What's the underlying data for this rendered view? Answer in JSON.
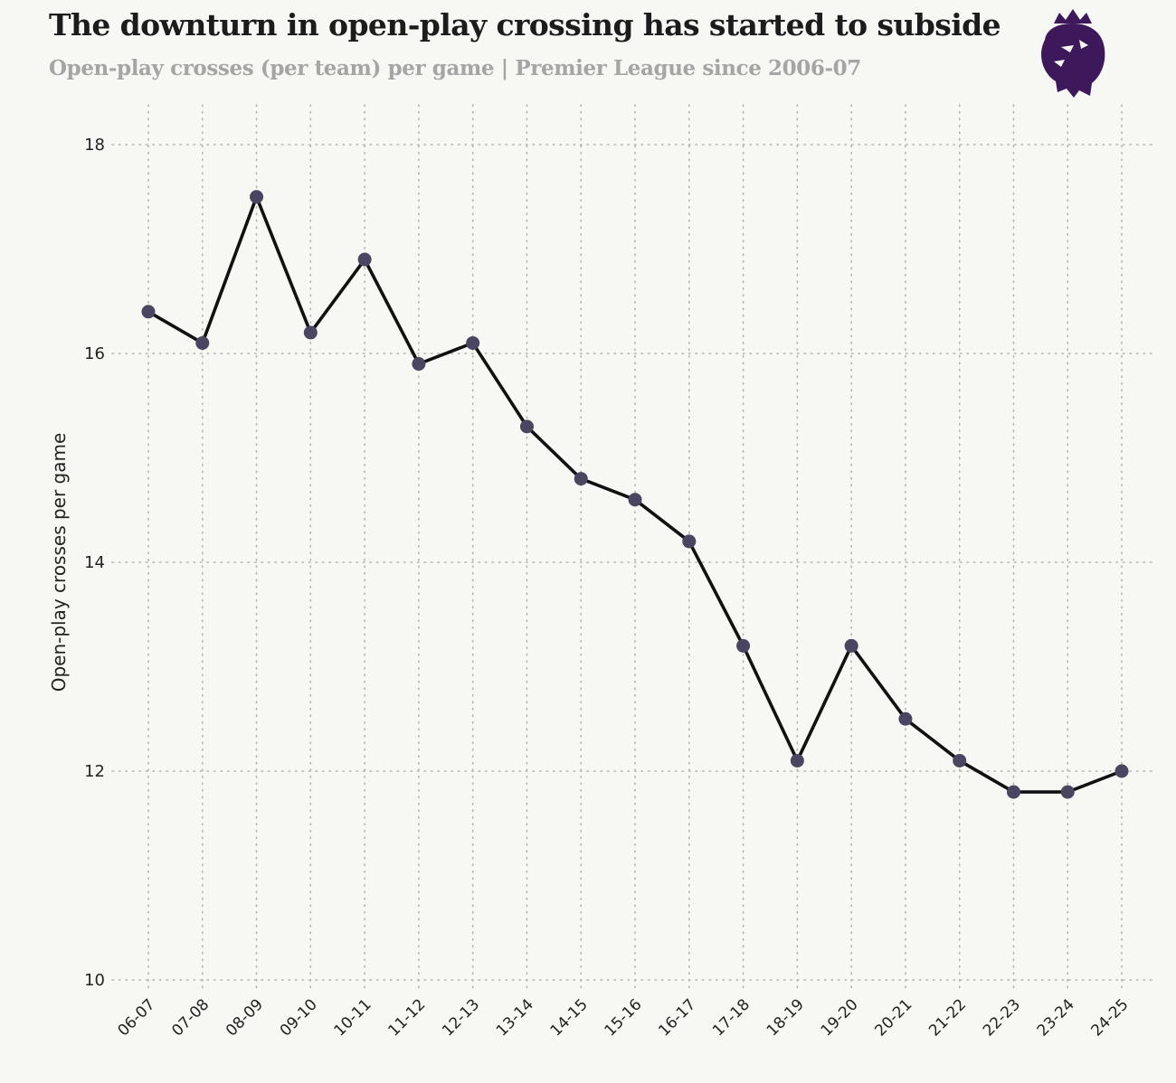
{
  "header": {
    "title": "The downturn in open-play crossing has started to subside",
    "subtitle": "Open-play crosses (per team) per game | Premier League since 2006-07"
  },
  "logo": {
    "icon": "premier-league-lion-icon",
    "color": "#3d195b"
  },
  "chart_data": {
    "type": "line",
    "title": "The downturn in open-play crossing has started to subside",
    "subtitle": "Open-play crosses (per team) per game | Premier League since 2006-07",
    "xlabel": "",
    "ylabel": "Open-play crosses per game",
    "categories": [
      "06-07",
      "07-08",
      "08-09",
      "09-10",
      "10-11",
      "11-12",
      "12-13",
      "13-14",
      "14-15",
      "15-16",
      "16-17",
      "17-18",
      "18-19",
      "19-20",
      "20-21",
      "21-22",
      "22-23",
      "23-24",
      "24-25"
    ],
    "series": [
      {
        "name": "Open-play crosses per game",
        "values": [
          16.4,
          16.1,
          17.5,
          16.2,
          16.9,
          15.9,
          16.1,
          15.3,
          14.8,
          14.6,
          14.2,
          13.2,
          12.1,
          13.2,
          12.5,
          12.1,
          11.8,
          11.8,
          12.0
        ]
      }
    ],
    "ylim": [
      10,
      18
    ],
    "yticks": [
      10,
      12,
      14,
      16,
      18
    ],
    "grid": true,
    "line_color": "#111111",
    "marker_color": "#4a4560"
  }
}
